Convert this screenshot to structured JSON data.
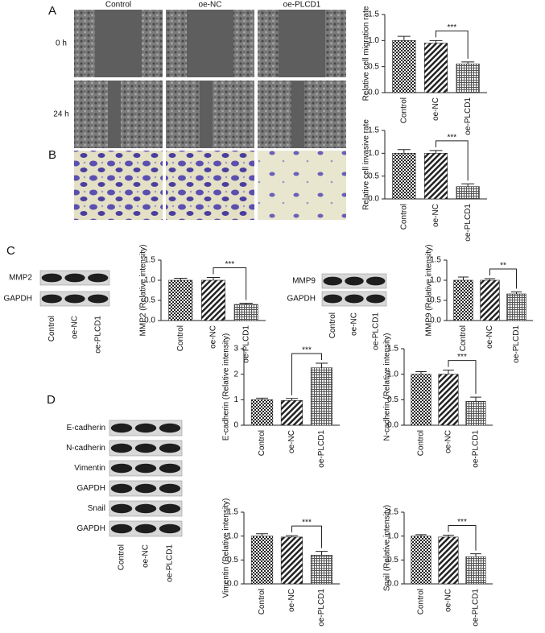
{
  "figure": {
    "panel_A": {
      "label": "A",
      "columns": [
        "Control",
        "oe-NC",
        "oe-PLCD1"
      ],
      "rows": [
        "0 h",
        "24 h"
      ]
    },
    "panel_B": {
      "label": "B"
    },
    "panel_C": {
      "label": "C",
      "blots": [
        {
          "rows": [
            "MMP2",
            "GAPDH"
          ],
          "lanes": [
            "Control",
            "oe-NC",
            "oe-PLCD1"
          ]
        },
        {
          "rows": [
            "MMP9",
            "GAPDH"
          ],
          "lanes": [
            "Control",
            "oe-NC",
            "oe-PLCD1"
          ]
        }
      ]
    },
    "panel_D": {
      "label": "D",
      "blots": [
        {
          "rows": [
            "E-cadherin",
            "N-cadherin",
            "Vimentin",
            "GAPDH",
            "Snail",
            "GAPDH"
          ],
          "lanes": [
            "Control",
            "oe-NC",
            "oe-PLCD1"
          ]
        }
      ]
    }
  },
  "chart_data": [
    {
      "type": "bar",
      "y_label": "Relative cell migration rate",
      "categories": [
        "Control",
        "oe-NC",
        "oe-PLCD1"
      ],
      "values": [
        1.0,
        0.95,
        0.55
      ],
      "errors": [
        0.08,
        0.05,
        0.04
      ],
      "ylim": [
        0,
        1.5
      ],
      "yticks": [
        {
          "value": 0,
          "label": "0.0"
        },
        {
          "value": 0.5,
          "label": "0.5"
        },
        {
          "value": 1,
          "label": "1.0"
        },
        {
          "value": 1.5,
          "label": "1.5"
        }
      ],
      "annotation": "***"
    },
    {
      "type": "bar",
      "y_label": "Relative cell invasive rate",
      "categories": [
        "Control",
        "oe-NC",
        "oe-PLCD1"
      ],
      "values": [
        1.0,
        1.0,
        0.27
      ],
      "errors": [
        0.08,
        0.06,
        0.06
      ],
      "ylim": [
        0,
        1.5
      ],
      "yticks": [
        {
          "value": 0,
          "label": "0.0"
        },
        {
          "value": 0.5,
          "label": "0.5"
        },
        {
          "value": 1,
          "label": "1.0"
        },
        {
          "value": 1.5,
          "label": "1.5"
        }
      ],
      "annotation": "***"
    },
    {
      "type": "bar",
      "y_label": "MMP2 (Relative intensity)",
      "categories": [
        "Control",
        "oe-NC",
        "oe-PLCD1"
      ],
      "values": [
        1.0,
        1.0,
        0.4
      ],
      "errors": [
        0.05,
        0.07,
        0.03
      ],
      "ylim": [
        0,
        1.5
      ],
      "yticks": [
        {
          "value": 0,
          "label": "0.0"
        },
        {
          "value": 0.5,
          "label": "0.5"
        },
        {
          "value": 1,
          "label": "1.0"
        },
        {
          "value": 1.5,
          "label": "1.5"
        }
      ],
      "annotation": "***"
    },
    {
      "type": "bar",
      "y_label": "MMP9 (Relative intensity)",
      "categories": [
        "Control",
        "oe-NC",
        "oe-PLCD1"
      ],
      "values": [
        1.0,
        1.0,
        0.66
      ],
      "errors": [
        0.08,
        0.04,
        0.05
      ],
      "ylim": [
        0,
        1.5
      ],
      "yticks": [
        {
          "value": 0,
          "label": "0.0"
        },
        {
          "value": 0.5,
          "label": "0.5"
        },
        {
          "value": 1,
          "label": "1.0"
        },
        {
          "value": 1.5,
          "label": "1.5"
        }
      ],
      "annotation": "**"
    },
    {
      "type": "bar",
      "y_label": "E-cadherin (Relative intensity)",
      "categories": [
        "Control",
        "oe-NC",
        "oe-PLCD1"
      ],
      "values": [
        1.0,
        0.97,
        2.25
      ],
      "errors": [
        0.06,
        0.08,
        0.18
      ],
      "ylim": [
        0,
        3
      ],
      "yticks": [
        0,
        1,
        2,
        3
      ],
      "annotation": "***"
    },
    {
      "type": "bar",
      "y_label": "N-cadherin (Relative intensity)",
      "categories": [
        "Control",
        "oe-NC",
        "oe-PLCD1"
      ],
      "values": [
        1.0,
        1.0,
        0.47
      ],
      "errors": [
        0.05,
        0.08,
        0.08
      ],
      "ylim": [
        0,
        1.5
      ],
      "yticks": [
        {
          "value": 0,
          "label": "0.0"
        },
        {
          "value": 0.5,
          "label": "0.5"
        },
        {
          "value": 1,
          "label": "1.0"
        },
        {
          "value": 1.5,
          "label": "1.5"
        }
      ],
      "annotation": "***"
    },
    {
      "type": "bar",
      "y_label": "Vimentin (Relative intensity)",
      "categories": [
        "Control",
        "oe-NC",
        "oe-PLCD1"
      ],
      "values": [
        1.0,
        0.98,
        0.6
      ],
      "errors": [
        0.05,
        0.03,
        0.08
      ],
      "ylim": [
        0,
        1.5
      ],
      "yticks": [
        {
          "value": 0,
          "label": "0.0"
        },
        {
          "value": 0.5,
          "label": "0.5"
        },
        {
          "value": 1,
          "label": "1.0"
        },
        {
          "value": 1.5,
          "label": "1.5"
        }
      ],
      "annotation": "***"
    },
    {
      "type": "bar",
      "y_label": "Snail (Relative intensity)",
      "categories": [
        "Control",
        "oe-NC",
        "oe-PLCD1"
      ],
      "values": [
        1.0,
        0.98,
        0.57
      ],
      "errors": [
        0.03,
        0.04,
        0.06
      ],
      "ylim": [
        0,
        1.5
      ],
      "yticks": [
        {
          "value": 0,
          "label": "0.0"
        },
        {
          "value": 0.5,
          "label": "0.5"
        },
        {
          "value": 1,
          "label": "1.0"
        },
        {
          "value": 1.5,
          "label": "1.5"
        }
      ],
      "annotation": "***"
    }
  ]
}
